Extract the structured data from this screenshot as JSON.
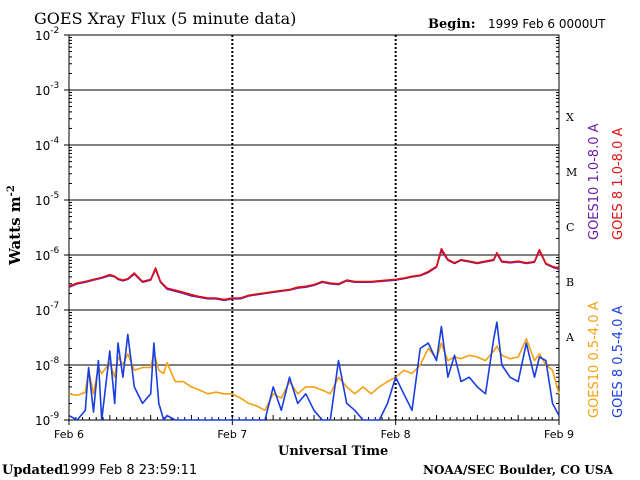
{
  "header": {
    "title": "GOES Xray Flux (5 minute data)",
    "begin_label": "Begin:",
    "begin_value": "1999 Feb 6 0000UT"
  },
  "footer": {
    "updated_label": "Updated",
    "updated_value": "1999 Feb  8 23:59:11",
    "credit": "NOAA/SEC Boulder, CO USA"
  },
  "chart_data": {
    "type": "line",
    "title": "GOES Xray Flux (5 minute data)",
    "xlabel": "Universal Time",
    "ylabel": "Watts m",
    "ylabel_exponent": "-2",
    "x_unit": "days since 1999 Feb 6 00:00 UT",
    "x_range": [
      0,
      3
    ],
    "x_ticks": [
      {
        "value": 0,
        "label": "Feb 6"
      },
      {
        "value": 1,
        "label": "Feb 7"
      },
      {
        "value": 2,
        "label": "Feb 8"
      },
      {
        "value": 3,
        "label": "Feb 9"
      }
    ],
    "y_scale": "log",
    "y_range": [
      1e-09,
      0.01
    ],
    "y_ticks": [
      {
        "value": 1e-09,
        "base": "10",
        "exp": "-9"
      },
      {
        "value": 1e-08,
        "base": "10",
        "exp": "-8"
      },
      {
        "value": 1e-07,
        "base": "10",
        "exp": "-7"
      },
      {
        "value": 1e-06,
        "base": "10",
        "exp": "-6"
      },
      {
        "value": 1e-05,
        "base": "10",
        "exp": "-5"
      },
      {
        "value": 0.0001,
        "base": "10",
        "exp": "-4"
      },
      {
        "value": 0.001,
        "base": "10",
        "exp": "-3"
      },
      {
        "value": 0.01,
        "base": "10",
        "exp": "-2"
      }
    ],
    "flare_classes": [
      {
        "label": "A",
        "value": 3.2e-08
      },
      {
        "label": "B",
        "value": 3.2e-07
      },
      {
        "label": "C",
        "value": 3.2e-06
      },
      {
        "label": "M",
        "value": 3.2e-05
      },
      {
        "label": "X",
        "value": 0.00032
      }
    ],
    "grid": true,
    "legend_position": "right",
    "series": [
      {
        "name": "GOES10 1.0-8.0 A",
        "color": "#6a1ba8",
        "x": [
          0,
          0.05,
          0.1,
          0.15,
          0.2,
          0.25,
          0.28,
          0.3,
          0.33,
          0.36,
          0.4,
          0.45,
          0.5,
          0.53,
          0.56,
          0.6,
          0.65,
          0.7,
          0.75,
          0.8,
          0.85,
          0.9,
          0.95,
          1.0,
          1.05,
          1.1,
          1.15,
          1.2,
          1.25,
          1.3,
          1.35,
          1.4,
          1.45,
          1.5,
          1.55,
          1.6,
          1.65,
          1.7,
          1.75,
          1.8,
          1.85,
          1.9,
          1.95,
          2.0,
          2.05,
          2.1,
          2.15,
          2.2,
          2.25,
          2.28,
          2.32,
          2.36,
          2.4,
          2.45,
          2.5,
          2.55,
          2.6,
          2.62,
          2.65,
          2.7,
          2.75,
          2.8,
          2.85,
          2.88,
          2.92,
          2.96,
          3.0
        ],
        "y": [
          2.6e-07,
          3e-07,
          3.2e-07,
          3.5e-07,
          3.8e-07,
          4.2e-07,
          4e-07,
          3.6e-07,
          3.4e-07,
          3.6e-07,
          4.5e-07,
          3.2e-07,
          3.5e-07,
          5.5e-07,
          3.2e-07,
          2.4e-07,
          2.2e-07,
          2e-07,
          1.8e-07,
          1.7e-07,
          1.6e-07,
          1.6e-07,
          1.5e-07,
          1.6e-07,
          1.6e-07,
          1.8e-07,
          1.9e-07,
          2e-07,
          2.1e-07,
          2.2e-07,
          2.3e-07,
          2.5e-07,
          2.6e-07,
          2.8e-07,
          3.2e-07,
          3e-07,
          2.9e-07,
          3.4e-07,
          3.2e-07,
          3.2e-07,
          3.2e-07,
          3.3e-07,
          3.4e-07,
          3.5e-07,
          3.7e-07,
          4e-07,
          4.2e-07,
          4.8e-07,
          6e-07,
          1.2e-06,
          8e-07,
          7e-07,
          8e-07,
          7.5e-07,
          7e-07,
          7.5e-07,
          8e-07,
          1.05e-06,
          7.5e-07,
          7.2e-07,
          7.5e-07,
          7e-07,
          7.4e-07,
          1.2e-06,
          6.8e-07,
          6e-07,
          5.5e-07
        ]
      },
      {
        "name": "GOES 8 1.0-8.0 A",
        "color": "#e01010",
        "x": [
          0,
          0.05,
          0.1,
          0.15,
          0.2,
          0.25,
          0.28,
          0.3,
          0.33,
          0.36,
          0.4,
          0.45,
          0.5,
          0.53,
          0.56,
          0.6,
          0.65,
          0.7,
          0.75,
          0.8,
          0.85,
          0.9,
          0.95,
          1.0,
          1.05,
          1.1,
          1.15,
          1.2,
          1.25,
          1.3,
          1.35,
          1.4,
          1.45,
          1.5,
          1.55,
          1.6,
          1.65,
          1.7,
          1.75,
          1.8,
          1.85,
          1.9,
          1.95,
          2.0,
          2.05,
          2.1,
          2.15,
          2.2,
          2.25,
          2.28,
          2.32,
          2.36,
          2.4,
          2.45,
          2.5,
          2.55,
          2.6,
          2.62,
          2.65,
          2.7,
          2.75,
          2.8,
          2.85,
          2.88,
          2.92,
          2.96,
          3.0
        ],
        "y": [
          2.7e-07,
          3.1e-07,
          3.3e-07,
          3.6e-07,
          3.9e-07,
          4.4e-07,
          4.1e-07,
          3.7e-07,
          3.5e-07,
          3.7e-07,
          4.7e-07,
          3.3e-07,
          3.6e-07,
          5.8e-07,
          3.3e-07,
          2.5e-07,
          2.3e-07,
          2.1e-07,
          1.9e-07,
          1.75e-07,
          1.65e-07,
          1.65e-07,
          1.55e-07,
          1.65e-07,
          1.65e-07,
          1.85e-07,
          1.95e-07,
          2.05e-07,
          2.15e-07,
          2.25e-07,
          2.35e-07,
          2.6e-07,
          2.7e-07,
          2.9e-07,
          3.3e-07,
          3.1e-07,
          3e-07,
          3.5e-07,
          3.3e-07,
          3.3e-07,
          3.3e-07,
          3.4e-07,
          3.5e-07,
          3.6e-07,
          3.8e-07,
          4.1e-07,
          4.3e-07,
          5e-07,
          6.2e-07,
          1.3e-06,
          8.3e-07,
          7.2e-07,
          8.2e-07,
          7.7e-07,
          7.2e-07,
          7.7e-07,
          8.3e-07,
          1.1e-06,
          7.7e-07,
          7.4e-07,
          7.7e-07,
          7.2e-07,
          7.6e-07,
          1.25e-06,
          7e-07,
          6.2e-07,
          5.7e-07
        ]
      },
      {
        "name": "GOES10 0.5-4.0 A",
        "color": "#f4a010",
        "x": [
          0,
          0.05,
          0.1,
          0.12,
          0.15,
          0.18,
          0.2,
          0.25,
          0.28,
          0.3,
          0.33,
          0.36,
          0.4,
          0.45,
          0.5,
          0.52,
          0.55,
          0.58,
          0.6,
          0.65,
          0.7,
          0.75,
          0.8,
          0.85,
          0.9,
          0.95,
          1.0,
          1.05,
          1.1,
          1.15,
          1.2,
          1.25,
          1.3,
          1.35,
          1.4,
          1.45,
          1.5,
          1.55,
          1.6,
          1.65,
          1.7,
          1.75,
          1.8,
          1.85,
          1.9,
          1.95,
          2.0,
          2.05,
          2.1,
          2.15,
          2.2,
          2.25,
          2.28,
          2.32,
          2.36,
          2.4,
          2.45,
          2.5,
          2.55,
          2.6,
          2.62,
          2.65,
          2.7,
          2.75,
          2.8,
          2.85,
          2.88,
          2.92,
          2.96,
          3.0
        ],
        "y": [
          3e-09,
          2.8e-09,
          3.2e-09,
          8e-09,
          3e-09,
          9e-09,
          7e-09,
          1.1e-08,
          6e-09,
          1.4e-08,
          1e-08,
          1.6e-08,
          8e-09,
          9e-09,
          9e-09,
          1.7e-08,
          8e-09,
          7e-09,
          1.1e-08,
          5e-09,
          5e-09,
          4e-09,
          3.5e-09,
          3e-09,
          3.2e-09,
          3e-09,
          3e-09,
          2.5e-09,
          2e-09,
          1.8e-09,
          1.5e-09,
          3e-09,
          2.5e-09,
          5e-09,
          3e-09,
          4e-09,
          4e-09,
          3.5e-09,
          3e-09,
          6e-09,
          4e-09,
          3e-09,
          4e-09,
          3e-09,
          4e-09,
          5e-09,
          6e-09,
          8e-09,
          7e-09,
          1e-08,
          2e-08,
          1.3e-08,
          2.5e-08,
          1.2e-08,
          1.4e-08,
          1.3e-08,
          1.5e-08,
          1.4e-08,
          1.2e-08,
          1.8e-08,
          2.2e-08,
          1.5e-08,
          1.3e-08,
          1.4e-08,
          3e-08,
          1.2e-08,
          1.6e-08,
          1e-08,
          8e-09,
          3e-09
        ]
      },
      {
        "name": "GOES 8 0.5-4.0 A",
        "color": "#1a3de0",
        "x": [
          0,
          0.05,
          0.1,
          0.12,
          0.15,
          0.18,
          0.2,
          0.25,
          0.28,
          0.3,
          0.33,
          0.36,
          0.4,
          0.45,
          0.5,
          0.52,
          0.55,
          0.58,
          0.6,
          0.65,
          0.7,
          0.75,
          0.8,
          0.85,
          0.9,
          0.95,
          1.0,
          1.05,
          1.1,
          1.15,
          1.2,
          1.25,
          1.3,
          1.35,
          1.4,
          1.45,
          1.5,
          1.55,
          1.6,
          1.65,
          1.7,
          1.75,
          1.8,
          1.85,
          1.9,
          1.95,
          2.0,
          2.05,
          2.1,
          2.15,
          2.2,
          2.25,
          2.28,
          2.32,
          2.36,
          2.4,
          2.45,
          2.5,
          2.55,
          2.6,
          2.62,
          2.65,
          2.7,
          2.75,
          2.8,
          2.85,
          2.88,
          2.92,
          2.96,
          3.0
        ],
        "y": [
          1.2e-09,
          1e-09,
          1.5e-09,
          9e-09,
          1.4e-09,
          1.2e-08,
          1e-09,
          1.8e-08,
          2e-09,
          2.5e-08,
          6e-09,
          3.6e-08,
          4e-09,
          2e-09,
          3e-09,
          2.5e-08,
          2e-09,
          1e-09,
          1.2e-09,
          1e-09,
          1e-09,
          1e-09,
          1e-09,
          1e-09,
          1e-09,
          1e-09,
          1e-09,
          1e-09,
          1e-09,
          1e-09,
          1e-09,
          4e-09,
          1.5e-09,
          6e-09,
          2e-09,
          3e-09,
          1.5e-09,
          1e-09,
          1e-09,
          1.2e-08,
          2e-09,
          1.5e-09,
          1e-09,
          1e-09,
          1e-09,
          2e-09,
          6e-09,
          3e-09,
          1.5e-09,
          2e-08,
          2.5e-08,
          1.2e-08,
          5e-08,
          6e-09,
          1.5e-08,
          5e-09,
          6e-09,
          4e-09,
          3e-09,
          3e-08,
          6e-08,
          1e-08,
          6e-09,
          5e-09,
          2.5e-08,
          6e-09,
          1.4e-08,
          1.2e-08,
          2e-09,
          1.2e-09
        ]
      }
    ]
  }
}
